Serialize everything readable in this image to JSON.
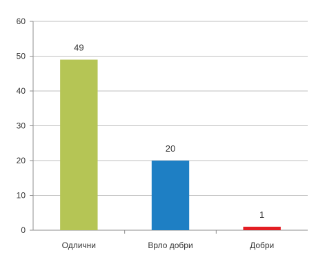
{
  "chart_data": {
    "type": "bar",
    "title": "",
    "xlabel": "",
    "ylabel": "",
    "categories": [
      "Одлични",
      "Врло добри",
      "Добри"
    ],
    "values": [
      49,
      20,
      1
    ],
    "data_labels": [
      "49",
      "20",
      "1"
    ],
    "bar_colors": [
      "#b5c555",
      "#1e7fc4",
      "#e31e24"
    ],
    "ylim": [
      0,
      60
    ],
    "y_ticks": [
      0,
      10,
      20,
      30,
      40,
      50,
      60
    ],
    "grid": true,
    "legend": "none"
  }
}
